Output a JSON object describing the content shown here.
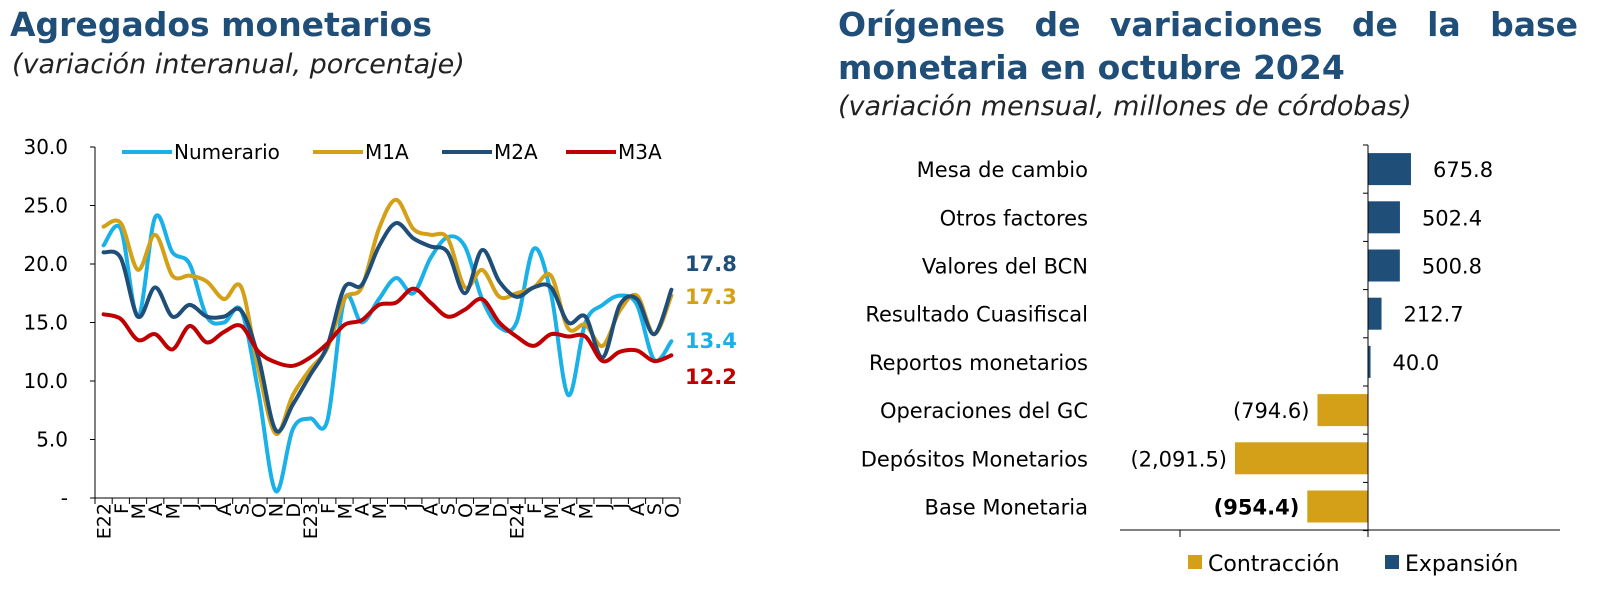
{
  "charts": {
    "left": {
      "title": "Agregados monetarios",
      "subtitle": "(variación interanual, porcentaje)"
    },
    "right": {
      "title_line1": "Orígenes de variaciones de la base",
      "title_line2": "monetaria en octubre 2024",
      "subtitle": "(variación mensual, millones de córdobas)"
    }
  },
  "chart_data": [
    {
      "type": "line",
      "title": "Agregados monetarios",
      "subtitle": "(variación interanual, porcentaje)",
      "x": [
        "E22",
        "F",
        "M",
        "A",
        "M",
        "J",
        "J",
        "A",
        "S",
        "O",
        "N",
        "D",
        "E23",
        "F",
        "M",
        "A",
        "M",
        "J",
        "J",
        "A",
        "S",
        "O",
        "N",
        "D",
        "E24",
        "F",
        "M",
        "A",
        "M",
        "J",
        "J",
        "A",
        "S",
        "O"
      ],
      "ylim": [
        0,
        30
      ],
      "yticks": [
        "-",
        "5.0",
        "10.0",
        "15.0",
        "20.0",
        "25.0",
        "30.0"
      ],
      "ytick_values": [
        0,
        5,
        10,
        15,
        20,
        25,
        30
      ],
      "legend_position": "top",
      "grid": false,
      "series": [
        {
          "name": "Numerario",
          "color": "#1ab0e8",
          "values": [
            21.6,
            23.0,
            15.5,
            24.0,
            21.0,
            20.0,
            15.5,
            15.0,
            16.0,
            9.0,
            0.6,
            5.9,
            6.8,
            6.6,
            17.0,
            15.0,
            17.0,
            18.8,
            17.5,
            20.5,
            22.3,
            21.5,
            17.0,
            14.6,
            15.0,
            21.3,
            17.5,
            8.8,
            15.0,
            16.5,
            17.3,
            16.5,
            11.8,
            13.4
          ]
        },
        {
          "name": "M1A",
          "color": "#d4a017",
          "values": [
            23.2,
            23.5,
            19.5,
            22.5,
            19.0,
            19.0,
            18.5,
            17.0,
            18.0,
            11.0,
            5.5,
            8.8,
            11.0,
            12.8,
            17.0,
            18.0,
            23.0,
            25.5,
            23.0,
            22.5,
            22.2,
            18.0,
            19.5,
            17.2,
            17.5,
            18.0,
            19.0,
            14.5,
            14.8,
            13.0,
            16.0,
            17.3,
            14.0,
            17.3
          ]
        },
        {
          "name": "M2A",
          "color": "#1f4e79",
          "values": [
            21.0,
            20.5,
            15.5,
            18.0,
            15.5,
            16.5,
            15.5,
            15.5,
            16.0,
            12.0,
            5.8,
            8.0,
            10.5,
            13.0,
            18.0,
            18.2,
            21.5,
            23.5,
            22.2,
            21.5,
            21.0,
            17.5,
            21.2,
            18.5,
            17.2,
            18.0,
            18.0,
            15.0,
            15.5,
            12.0,
            16.5,
            17.0,
            14.0,
            17.8
          ]
        },
        {
          "name": "M3A",
          "color": "#c00000",
          "values": [
            15.7,
            15.3,
            13.5,
            14.0,
            12.7,
            14.7,
            13.3,
            14.2,
            14.7,
            12.5,
            11.6,
            11.3,
            12.0,
            13.2,
            14.8,
            15.2,
            16.5,
            16.7,
            17.9,
            16.7,
            15.5,
            16.1,
            17.0,
            15.0,
            13.8,
            13.0,
            14.0,
            13.8,
            13.8,
            11.7,
            12.5,
            12.6,
            11.7,
            12.2
          ]
        }
      ],
      "end_labels": [
        {
          "series": "M2A",
          "text": "17.8",
          "color": "#1f4e79"
        },
        {
          "series": "M1A",
          "text": "17.3",
          "color": "#d4a017"
        },
        {
          "series": "Numerario",
          "text": "13.4",
          "color": "#1ab0e8"
        },
        {
          "series": "M3A",
          "text": "12.2",
          "color": "#c00000"
        }
      ]
    },
    {
      "type": "bar",
      "orientation": "horizontal",
      "title": "Orígenes de variaciones de la base monetaria en octubre 2024",
      "subtitle": "(variación mensual, millones de córdobas)",
      "categories": [
        "Mesa de cambio",
        "Otros factores",
        "Valores del BCN",
        "Resultado Cuasifiscal",
        "Reportos monetarios",
        "Operaciones del GC",
        "Depósitos Monetarios",
        "Base Monetaria"
      ],
      "values": [
        675.8,
        502.4,
        500.8,
        212.7,
        40.0,
        -794.6,
        -2091.5,
        -954.4
      ],
      "labels": [
        "675.8",
        "502.4",
        "500.8",
        "212.7",
        "40.0",
        "(794.6)",
        "(2,091.5)",
        "(954.4)"
      ],
      "bold_labels": [
        false,
        false,
        false,
        false,
        false,
        false,
        false,
        true
      ],
      "legend": [
        {
          "name": "Contracción",
          "color": "#d4a017"
        },
        {
          "name": "Expansión",
          "color": "#1f4e79"
        }
      ],
      "legend_position": "bottom",
      "xlim": [
        -2200,
        750
      ]
    }
  ]
}
